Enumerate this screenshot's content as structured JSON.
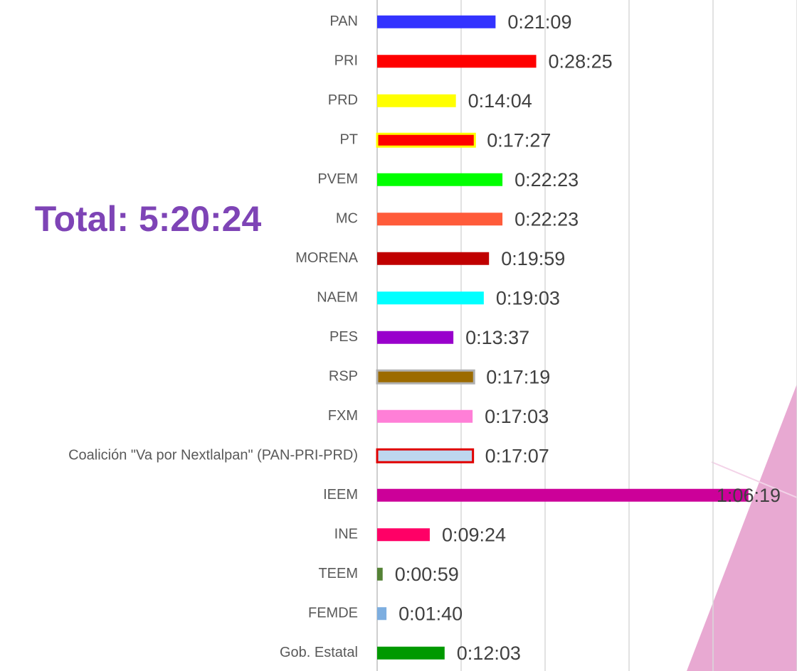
{
  "chart_data": {
    "type": "barh",
    "annotation": "Total: 5:20:24",
    "categories": [
      "PAN",
      "PRI",
      "PRD",
      "PT",
      "PVEM",
      "MC",
      "MORENA",
      "NAEM",
      "PES",
      "RSP",
      "FXM",
      "Coalición \"Va por Nextlalpan\" (PAN-PRI-PRD)",
      "IEEM",
      "INE",
      "TEEM",
      "FEMDE",
      "Gob. Estatal"
    ],
    "values": [
      1269,
      1705,
      844,
      1047,
      1343,
      1343,
      1199,
      1143,
      817,
      1039,
      1023,
      1027,
      3979,
      564,
      59,
      100,
      723
    ],
    "value_labels": [
      "0:21:09",
      "0:28:25",
      "0:14:04",
      "0:17:27",
      "0:22:23",
      "0:22:23",
      "0:19:59",
      "0:19:03",
      "0:13:37",
      "0:17:19",
      "0:17:03",
      "0:17:07",
      "1:06:19",
      "0:09:24",
      "0:00:59",
      "0:01:40",
      "0:12:03"
    ],
    "colors": [
      "#3333ff",
      "#ff0000",
      "#ffff00",
      "#ff0000",
      "#00ff00",
      "#ff5b3a",
      "#c00000",
      "#00ffff",
      "#9900cc",
      "#9c6b00",
      "#ff7fd7",
      "#bdd7ee",
      "#cc0099",
      "#ff0066",
      "#548235",
      "#7daee0",
      "#009900"
    ],
    "edge_colors": [
      null,
      null,
      null,
      "#ffff00",
      null,
      null,
      null,
      null,
      null,
      "#b0b0b0",
      null,
      "#e00000",
      null,
      null,
      null,
      null,
      null
    ],
    "xlim": [
      0,
      4500
    ],
    "xticks": [
      0,
      900,
      1800,
      2700,
      3600,
      4500
    ],
    "grid": true
  }
}
